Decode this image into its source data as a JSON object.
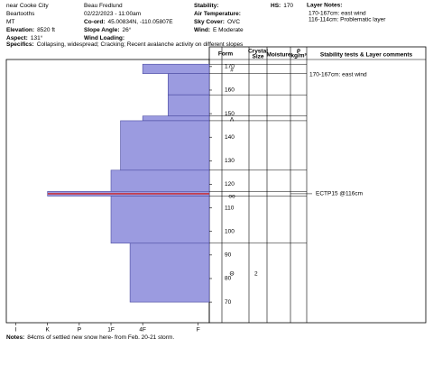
{
  "header": {
    "col1": [
      {
        "text": "near Cooke City"
      },
      {
        "text": "Beartooths"
      },
      {
        "text": "MT"
      },
      {
        "label": "Elevation:",
        "value": "8520 ft"
      },
      {
        "label": "Aspect:",
        "value": "131°"
      }
    ],
    "col2": [
      {
        "text": "Beau  Fredlund"
      },
      {
        "text": "02/22/2023 - 11:00am"
      },
      {
        "label": "Co-ord:",
        "value": "45.00834N, -110.05807E"
      },
      {
        "label": "Slope Angle:",
        "value": "26°"
      },
      {
        "label": "Wind Loading:"
      }
    ],
    "col3": [
      {
        "label": "Stability:"
      },
      {
        "label": "Air Temperature:"
      },
      {
        "label": "Sky Cover:",
        "value": "OVC"
      },
      {
        "label": "Wind:",
        "value": "E Moderate"
      }
    ],
    "hs": {
      "label": "HS:",
      "value": "170"
    },
    "layer_notes": {
      "label": "Layer Notes:",
      "items": [
        "170-167cm: east wind",
        "116-114cm: Problematic layer"
      ]
    },
    "specifics": {
      "label": "Specifics:",
      "value": "Collapsing, widespread; Cracking; Recent avalanche activity on different slopes"
    }
  },
  "table_headers": [
    "Form",
    "Crystal",
    "Size",
    "Moisture",
    "ρ",
    "kg/m³",
    "Stability tests & Layer comments"
  ],
  "chart_data": {
    "type": "bar",
    "color": "#9b9be0",
    "xlim": [
      6.3,
      -0.1
    ],
    "xticks": [
      {
        "value": 6,
        "label": "I"
      },
      {
        "value": 5,
        "label": "K"
      },
      {
        "value": 4,
        "label": "P"
      },
      {
        "value": 3,
        "label": "1F"
      },
      {
        "value": 2,
        "label": "4F"
      },
      {
        "value": 0.25,
        "label": "F"
      }
    ],
    "ylim": [
      62,
      173
    ],
    "yticks": [
      70,
      80,
      90,
      100,
      110,
      120,
      130,
      140,
      150,
      160,
      170
    ],
    "layers": [
      {
        "top": 171,
        "bottom": 167,
        "hardness": 2
      },
      {
        "top": 167,
        "bottom": 158,
        "hardness": 1.2
      },
      {
        "top": 158,
        "bottom": 149,
        "hardness": 1.2
      },
      {
        "top": 149,
        "bottom": 147,
        "hardness": 2
      },
      {
        "top": 147,
        "bottom": 126,
        "hardness": 2.7
      },
      {
        "top": 126,
        "bottom": 117,
        "hardness": 3
      },
      {
        "top": 117,
        "bottom": 115,
        "hardness": 5
      },
      {
        "top": 115,
        "bottom": 95,
        "hardness": 3
      },
      {
        "top": 95,
        "bottom": 70,
        "hardness": 2.4
      }
    ],
    "grains": [
      {
        "depth": 168.5,
        "form": "#"
      },
      {
        "depth": 147.5,
        "form": "Λ"
      },
      {
        "depth": 115,
        "form": "oo"
      },
      {
        "depth": 82,
        "form": "Θ",
        "size": 2
      }
    ],
    "comments": [
      {
        "depth": 167,
        "text": "170-167cm: east wind"
      }
    ],
    "tests": [
      {
        "depth": 116,
        "text": "ECTP15 @116cm",
        "color": "#cc2222"
      }
    ]
  },
  "notes": {
    "label": "Notes:",
    "value": "84cms of settled new snow here- from Feb. 20-21 storm."
  }
}
